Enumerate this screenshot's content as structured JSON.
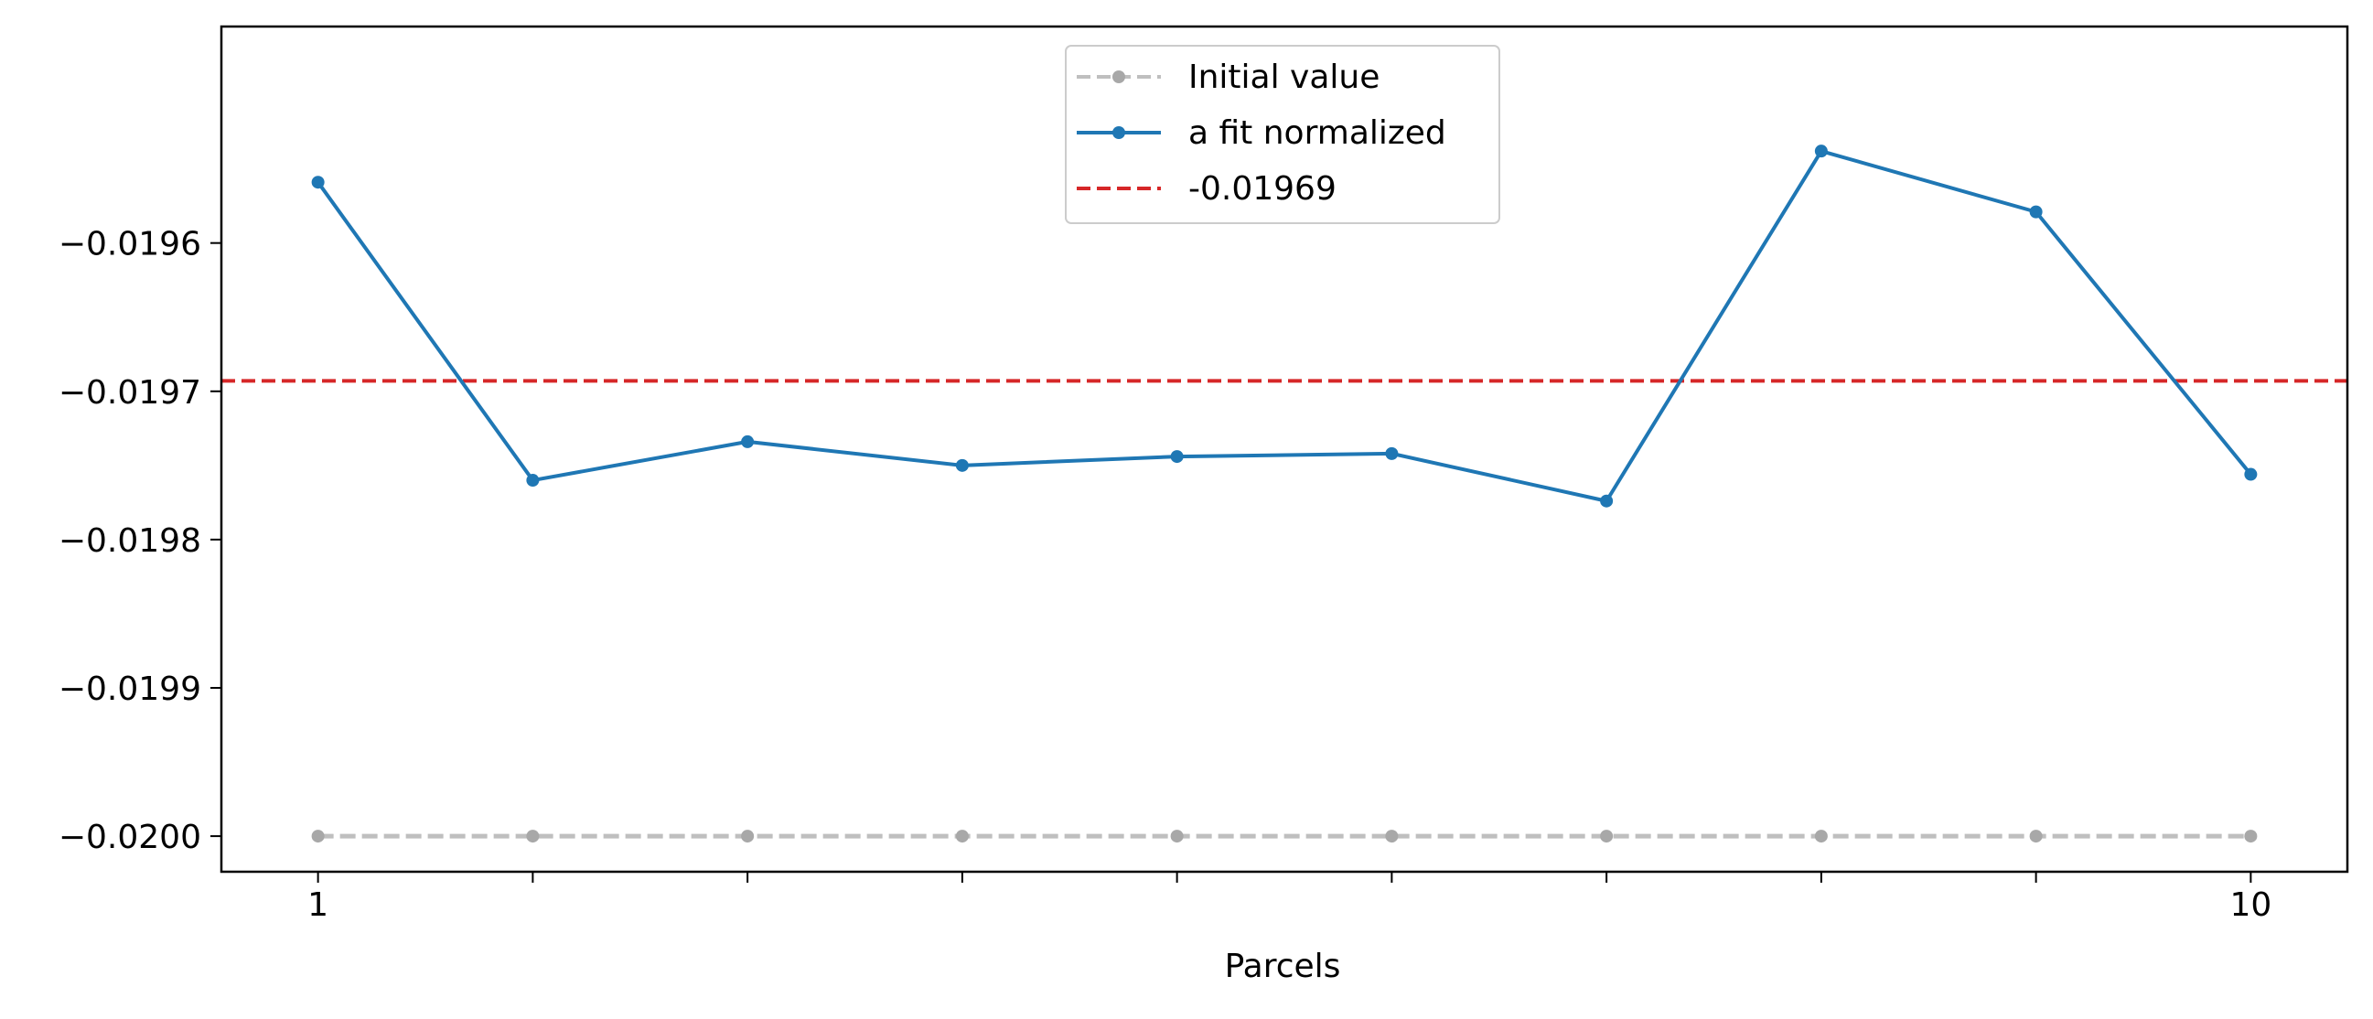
{
  "chart_data": {
    "type": "line",
    "title": "",
    "xlabel": "Parcels",
    "ylabel": "",
    "x": [
      1,
      2,
      3,
      4,
      5,
      6,
      7,
      8,
      9,
      10
    ],
    "xlim": [
      0.55,
      10.45
    ],
    "ylim": [
      -0.020024,
      -0.019454
    ],
    "x_ticks": [
      1,
      2,
      3,
      4,
      5,
      6,
      7,
      8,
      9,
      10
    ],
    "x_tick_labels": [
      "1",
      "",
      "",
      "",
      "",
      "",
      "",
      "",
      "",
      "10"
    ],
    "y_ticks": [
      -0.0196,
      -0.0197,
      -0.0198,
      -0.0199,
      -0.02
    ],
    "y_tick_labels": [
      "−0.0196",
      "−0.0197",
      "−0.0198",
      "−0.0199",
      "−0.0200"
    ],
    "grid": false,
    "legend_position": "top-center",
    "series": [
      {
        "name": "Initial value",
        "color": "#bfbfbf",
        "line_style": "dashed",
        "marker": "circle",
        "values": [
          -0.02,
          -0.02,
          -0.02,
          -0.02,
          -0.02,
          -0.02,
          -0.02,
          -0.02,
          -0.02,
          -0.02
        ]
      },
      {
        "name": "a fit normalized",
        "color": "#1f77b4",
        "line_style": "solid",
        "marker": "circle",
        "values": [
          -0.019559,
          -0.01976,
          -0.019734,
          -0.01975,
          -0.019744,
          -0.019742,
          -0.019774,
          -0.019538,
          -0.019579,
          -0.019756
        ]
      }
    ],
    "reference_lines": [
      {
        "name": "-0.01969",
        "value": -0.019693,
        "color": "#d62728",
        "line_style": "dashed"
      }
    ]
  }
}
